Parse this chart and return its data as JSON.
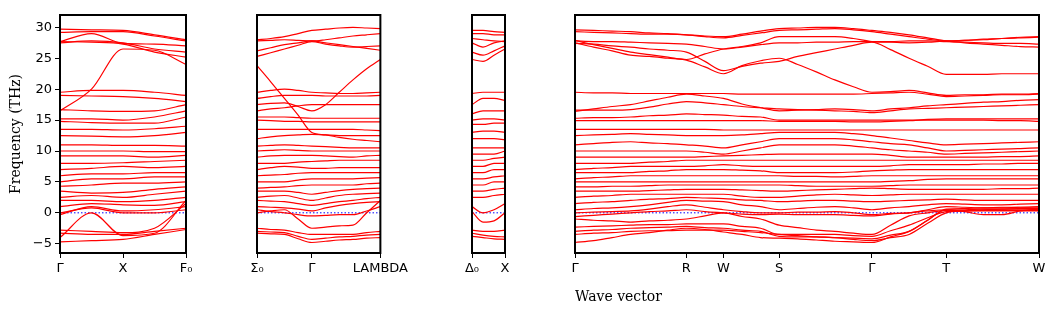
{
  "chart_data": [
    {
      "type": "line",
      "ylabel": "Frequency (THz)",
      "categories": [
        "Γ",
        null,
        "X",
        null,
        "F₀"
      ],
      "ylim": [
        -6.5,
        32
      ],
      "yticks": [
        -5,
        0,
        5,
        10,
        15,
        20,
        25,
        30
      ],
      "ref_lines": [
        {
          "axis": "y",
          "value": 0,
          "color": "#0000ff",
          "line_style": "dotted"
        }
      ],
      "series": [
        {
          "color": "#ff0000",
          "values": [
            29.7,
            29.6,
            29.5,
            28.8,
            28.0
          ]
        },
        {
          "color": "#ff0000",
          "values": [
            29.2,
            29.3,
            29.3,
            28.6,
            27.8
          ]
        },
        {
          "color": "#ff0000",
          "values": [
            27.7,
            29.0,
            27.4,
            27.3,
            27.0
          ]
        },
        {
          "color": "#ff0000",
          "values": [
            27.5,
            27.8,
            27.5,
            26.5,
            26.0
          ]
        },
        {
          "color": "#ff0000",
          "values": [
            27.7,
            27.6,
            27.3,
            26.0,
            25.2
          ]
        },
        {
          "color": "#ff0000",
          "values": [
            16.5,
            20,
            26.5,
            26.3,
            24
          ]
        },
        {
          "color": "#ff0000",
          "values": [
            19.5,
            19.8,
            19.8,
            19.5,
            19.0
          ]
        },
        {
          "color": "#ff0000",
          "values": [
            19.0,
            18.9,
            18.8,
            18.5,
            18.0
          ]
        },
        {
          "color": "#ff0000",
          "values": [
            16.7,
            16.5,
            16.4,
            16.5,
            17.5
          ]
        },
        {
          "color": "#ff0000",
          "values": [
            15.2,
            15.2,
            15.0,
            15.5,
            16.5
          ]
        },
        {
          "color": "#ff0000",
          "values": [
            14.8,
            14.6,
            14.5,
            14.5,
            15.5
          ]
        },
        {
          "color": "#ff0000",
          "values": [
            13.5,
            13.5,
            13.4,
            13.6,
            14.0
          ]
        },
        {
          "color": "#ff0000",
          "values": [
            12.5,
            12.4,
            12.3,
            12.5,
            13.0
          ]
        },
        {
          "color": "#ff0000",
          "values": [
            11.0,
            11.0,
            10.9,
            10.9,
            10.8
          ]
        },
        {
          "color": "#ff0000",
          "values": [
            10.0,
            10.0,
            10.0,
            9.9,
            9.9
          ]
        },
        {
          "color": "#ff0000",
          "values": [
            9.2,
            9.2,
            9.2,
            9.0,
            9.3
          ]
        },
        {
          "color": "#ff0000",
          "values": [
            8.0,
            8.0,
            8.1,
            8.3,
            8.5
          ]
        },
        {
          "color": "#ff0000",
          "values": [
            7.0,
            7.2,
            7.5,
            7.3,
            7.5
          ]
        },
        {
          "color": "#ff0000",
          "values": [
            6.0,
            6.3,
            6.3,
            6.5,
            6.5
          ]
        },
        {
          "color": "#ff0000",
          "values": [
            5.0,
            5.5,
            5.5,
            5.8,
            5.8
          ]
        },
        {
          "color": "#ff0000",
          "values": [
            4.3,
            4.5,
            4.8,
            4.8,
            5.0
          ]
        },
        {
          "color": "#ff0000",
          "values": [
            3.5,
            3.2,
            3.3,
            3.8,
            4.2
          ]
        },
        {
          "color": "#ff0000",
          "values": [
            2.5,
            2.8,
            2.5,
            3.0,
            3.5
          ]
        },
        {
          "color": "#ff0000",
          "values": [
            2.0,
            2.0,
            1.8,
            2.0,
            2.5
          ]
        },
        {
          "color": "#ff0000",
          "values": [
            1.0,
            1.5,
            1.3,
            1.2,
            1.8
          ]
        },
        {
          "color": "#ff0000",
          "values": [
            0,
            0.8,
            0,
            0,
            0.5
          ]
        },
        {
          "color": "#ff0000",
          "values": [
            -0.3,
            1.0,
            0.3,
            0.5,
            1.0
          ]
        },
        {
          "color": "#ff0000",
          "values": [
            -2.8,
            -3.0,
            -3.2,
            -2.5,
            1.5
          ]
        },
        {
          "color": "#ff0000",
          "values": [
            -3.3,
            -3.5,
            -3.5,
            -3.0,
            -2.5
          ]
        },
        {
          "color": "#ff0000",
          "values": [
            -4.0,
            0,
            -3.7,
            -3.3,
            2.0
          ]
        },
        {
          "color": "#ff0000",
          "values": [
            -4.7,
            -4.5,
            -4.3,
            -3.5,
            -2.7
          ]
        }
      ]
    },
    {
      "type": "line",
      "categories": [
        "Σ₀",
        null,
        null,
        null,
        "Γ",
        null,
        null,
        null,
        null,
        "LAMBDA"
      ],
      "ylim": [
        -6.5,
        32
      ],
      "yticks": [
        -5,
        0,
        5,
        10,
        15,
        20,
        25,
        30
      ],
      "tick_labels": "x",
      "ref_lines": [
        {
          "axis": "y",
          "value": 0,
          "color": "#0000ff",
          "line_style": "dotted"
        }
      ],
      "series": [
        {
          "color": "#ff0000",
          "values": [
            28.0,
            28.2,
            28.5,
            29.0,
            29.5,
            29.7,
            29.9,
            30.0,
            29.9,
            29.8
          ]
        },
        {
          "color": "#ff0000",
          "values": [
            27.8,
            27.9,
            28.0,
            27.9,
            27.8,
            28.0,
            28.3,
            28.6,
            28.8,
            29.0
          ]
        },
        {
          "color": "#ff0000",
          "values": [
            26.2,
            26.7,
            27.2,
            27.5,
            27.8,
            27.5,
            27.2,
            26.9,
            26.6,
            26.3
          ]
        },
        {
          "color": "#ff0000",
          "values": [
            25.3,
            25.9,
            26.5,
            27.1,
            27.7,
            27.3,
            27.0,
            26.8,
            26.9,
            27.0
          ]
        },
        {
          "color": "#ff0000",
          "values": [
            23.8,
            21.2,
            18.5,
            15.8,
            13.0,
            12.6,
            12.2,
            11.9,
            11.7,
            11.5
          ]
        },
        {
          "color": "#ff0000",
          "values": [
            19.5,
            19.8,
            20.0,
            19.8,
            19.5,
            19.4,
            19.3,
            19.3,
            19.4,
            19.5
          ]
        },
        {
          "color": "#ff0000",
          "values": [
            17.5,
            17.7,
            17.8,
            17.2,
            16.5,
            17.5,
            19.5,
            21.5,
            23.3,
            24.8
          ]
        },
        {
          "color": "#ff0000",
          "values": [
            18.5,
            18.8,
            19.0,
            19.0,
            19.0,
            18.9,
            18.9,
            18.9,
            18.9,
            19.0
          ]
        },
        {
          "color": "#ff0000",
          "values": [
            16.5,
            16.8,
            17.0,
            17.3,
            17.5,
            17.5,
            17.5,
            17.5,
            17.5,
            17.5
          ]
        },
        {
          "color": "#ff0000",
          "values": [
            15.5,
            15.5,
            15.5,
            15.4,
            15.3,
            15.3,
            15.3,
            15.3,
            15.3,
            15.3
          ]
        },
        {
          "color": "#ff0000",
          "values": [
            15.0,
            14.9,
            14.8,
            14.8,
            14.7,
            14.7,
            14.7,
            14.7,
            14.7,
            14.7
          ]
        },
        {
          "color": "#ff0000",
          "values": [
            13.5,
            13.5,
            13.5,
            13.5,
            13.5,
            13.5,
            13.5,
            13.5,
            13.4,
            13.3
          ]
        },
        {
          "color": "#ff0000",
          "values": [
            12.0,
            12.3,
            12.5,
            12.6,
            12.7,
            12.6,
            12.5,
            12.5,
            12.5,
            12.5
          ]
        },
        {
          "color": "#ff0000",
          "values": [
            10.8,
            10.9,
            11.0,
            10.9,
            10.8,
            10.7,
            10.6,
            10.5,
            10.5,
            10.5
          ]
        },
        {
          "color": "#ff0000",
          "values": [
            10.0,
            10.1,
            10.2,
            10.1,
            10.0,
            10.0,
            10.0,
            10.0,
            10.0,
            10.0
          ]
        },
        {
          "color": "#ff0000",
          "values": [
            9.0,
            9.2,
            9.3,
            9.3,
            9.3,
            9.2,
            9.1,
            9.0,
            9.2,
            9.3
          ]
        },
        {
          "color": "#ff0000",
          "values": [
            8.0,
            8.0,
            8.0,
            8.2,
            8.3,
            8.4,
            8.5,
            8.5,
            8.5,
            8.5
          ]
        },
        {
          "color": "#ff0000",
          "values": [
            7.0,
            7.3,
            7.5,
            7.4,
            7.2,
            7.2,
            7.3,
            7.3,
            7.3,
            7.3
          ]
        },
        {
          "color": "#ff0000",
          "values": [
            6.0,
            6.1,
            6.2,
            6.4,
            6.5,
            6.5,
            6.5,
            6.5,
            6.5,
            6.5
          ]
        },
        {
          "color": "#ff0000",
          "values": [
            5.0,
            5.0,
            5.0,
            5.3,
            5.5,
            5.5,
            5.5,
            5.5,
            5.6,
            5.7
          ]
        },
        {
          "color": "#ff0000",
          "values": [
            4.0,
            4.1,
            4.2,
            4.4,
            4.5,
            4.5,
            4.5,
            4.5,
            4.7,
            4.8
          ]
        },
        {
          "color": "#ff0000",
          "values": [
            3.5,
            3.5,
            3.5,
            3.3,
            3.0,
            3.3,
            3.6,
            3.8,
            3.9,
            4.0
          ]
        },
        {
          "color": "#ff0000",
          "values": [
            2.5,
            2.7,
            2.8,
            2.4,
            2.0,
            2.4,
            2.8,
            3.0,
            3.1,
            3.2
          ]
        },
        {
          "color": "#ff0000",
          "values": [
            2.0,
            1.9,
            1.8,
            1.5,
            1.2,
            1.5,
            1.8,
            2.0,
            2.3,
            2.5
          ]
        },
        {
          "color": "#ff0000",
          "values": [
            1.0,
            0.9,
            0.8,
            0.6,
            0.3,
            0.8,
            1.2,
            1.5,
            1.7,
            1.8
          ]
        },
        {
          "color": "#ff0000",
          "values": [
            0.5,
            0.2,
            0.0,
            -0.3,
            -0.5,
            -0.4,
            -0.3,
            -0.3,
            0.3,
            1.0
          ]
        },
        {
          "color": "#ff0000",
          "values": [
            0.0,
            0.3,
            0.5,
            -1.0,
            -2.5,
            -2.3,
            -2.1,
            -2.0,
            0.0,
            2.0
          ]
        },
        {
          "color": "#ff0000",
          "values": [
            -2.5,
            -2.7,
            -2.8,
            -3.2,
            -3.5,
            -3.5,
            -3.5,
            -3.5,
            -3.2,
            -3.0
          ]
        },
        {
          "color": "#ff0000",
          "values": [
            -3.0,
            -3.1,
            -3.2,
            -3.8,
            -4.3,
            -4.1,
            -3.9,
            -3.8,
            -3.6,
            -3.5
          ]
        },
        {
          "color": "#ff0000",
          "values": [
            -3.3,
            -3.4,
            -3.5,
            -4.2,
            -4.8,
            -4.6,
            -4.4,
            -4.3,
            -4.1,
            -4.0
          ]
        }
      ]
    },
    {
      "type": "line",
      "categories": [
        "Δ₀",
        null,
        null,
        "X"
      ],
      "ylim": [
        -6.5,
        32
      ],
      "yticks": [
        -5,
        0,
        5,
        10,
        15,
        20,
        25,
        30
      ],
      "tick_labels": "x",
      "ref_lines": [
        {
          "axis": "y",
          "value": 0,
          "color": "#0000ff",
          "line_style": "dotted"
        }
      ],
      "series": [
        {
          "color": "#ff0000",
          "values": [
            29.5,
            29.5,
            29.3,
            29.2
          ]
        },
        {
          "color": "#ff0000",
          "values": [
            29.0,
            29.0,
            28.8,
            28.8
          ]
        },
        {
          "color": "#ff0000",
          "values": [
            28.2,
            28.0,
            27.8,
            27.7
          ]
        },
        {
          "color": "#ff0000",
          "values": [
            27.5,
            26.8,
            27.5,
            27.8
          ]
        },
        {
          "color": "#ff0000",
          "values": [
            26.0,
            25.5,
            26.2,
            27.0
          ]
        },
        {
          "color": "#ff0000",
          "values": [
            24.8,
            24.5,
            25.5,
            26.5
          ]
        },
        {
          "color": "#ff0000",
          "values": [
            19.3,
            19.5,
            19.5,
            19.5
          ]
        },
        {
          "color": "#ff0000",
          "values": [
            17.5,
            18.5,
            18.5,
            18.2
          ]
        },
        {
          "color": "#ff0000",
          "values": [
            16.0,
            16.5,
            16.5,
            16.5
          ]
        },
        {
          "color": "#ff0000",
          "values": [
            15.0,
            15.2,
            15.2,
            15.0
          ]
        },
        {
          "color": "#ff0000",
          "values": [
            14.3,
            14.3,
            14.5,
            14.5
          ]
        },
        {
          "color": "#ff0000",
          "values": [
            13.0,
            13.2,
            13.2,
            13.0
          ]
        },
        {
          "color": "#ff0000",
          "values": [
            12.0,
            12.0,
            12.0,
            11.8
          ]
        },
        {
          "color": "#ff0000",
          "values": [
            10.5,
            10.5,
            10.5,
            10.5
          ]
        },
        {
          "color": "#ff0000",
          "values": [
            9.5,
            9.5,
            9.5,
            10.0
          ]
        },
        {
          "color": "#ff0000",
          "values": [
            8.5,
            8.5,
            8.8,
            9.0
          ]
        },
        {
          "color": "#ff0000",
          "values": [
            7.5,
            7.5,
            8.0,
            8.0
          ]
        },
        {
          "color": "#ff0000",
          "values": [
            6.5,
            6.5,
            7.0,
            7.0
          ]
        },
        {
          "color": "#ff0000",
          "values": [
            5.5,
            5.5,
            5.8,
            6.0
          ]
        },
        {
          "color": "#ff0000",
          "values": [
            4.5,
            4.5,
            5.0,
            5.0
          ]
        },
        {
          "color": "#ff0000",
          "values": [
            3.5,
            3.5,
            3.8,
            4.0
          ]
        },
        {
          "color": "#ff0000",
          "values": [
            2.5,
            2.5,
            2.8,
            3.0
          ]
        },
        {
          "color": "#ff0000",
          "values": [
            1.0,
            0.0,
            0.5,
            1.5
          ]
        },
        {
          "color": "#ff0000",
          "values": [
            0.2,
            -1.5,
            -1.3,
            0.0
          ]
        },
        {
          "color": "#ff0000",
          "values": [
            -2.8,
            -3.0,
            -3.0,
            -2.8
          ]
        },
        {
          "color": "#ff0000",
          "values": [
            -3.3,
            -3.6,
            -3.8,
            -3.9
          ]
        },
        {
          "color": "#ff0000",
          "values": [
            -3.8,
            -4.0,
            -4.2,
            -4.3
          ]
        }
      ]
    },
    {
      "type": "line",
      "xlabel": "Wave vector",
      "categories": [
        "Γ",
        null,
        null,
        null,
        null,
        null,
        "R",
        null,
        "W",
        null,
        null,
        "S",
        null,
        null,
        null,
        null,
        "Γ",
        null,
        null,
        null,
        "T",
        null,
        null,
        null,
        null,
        "W"
      ],
      "ylim": [
        -6.5,
        32
      ],
      "yticks": [
        -5,
        0,
        5,
        10,
        15,
        20,
        25,
        30
      ],
      "tick_labels": "x",
      "ref_lines": [
        {
          "axis": "y",
          "value": 0,
          "color": "#0000ff",
          "line_style": "dotted"
        }
      ],
      "series": [
        {
          "color": "#ff0000",
          "values": [
            29.6,
            29.5,
            29.4,
            29.3,
            29.1,
            29.0,
            28.8,
            28.6,
            28.5,
            28.9,
            29.4,
            29.8,
            29.9,
            30.0,
            30.0,
            29.8,
            29.5,
            29.2,
            28.8,
            28.3,
            27.8,
            27.5,
            27.3,
            27.1,
            26.9,
            26.8
          ]
        },
        {
          "color": "#ff0000",
          "values": [
            29.3,
            29.2,
            29.1,
            29.0,
            28.9,
            28.9,
            28.8,
            28.5,
            28.3,
            28.7,
            29.1,
            29.5,
            29.6,
            29.7,
            29.8,
            29.6,
            29.3,
            28.9,
            28.5,
            28.1,
            27.8,
            27.9,
            28.1,
            28.2,
            28.4,
            28.5
          ]
        },
        {
          "color": "#ff0000",
          "values": [
            27.8,
            27.7,
            27.7,
            27.6,
            27.5,
            27.4,
            27.3,
            26.9,
            26.5,
            26.8,
            27.2,
            27.5,
            27.5,
            27.6,
            27.6,
            27.7,
            27.7,
            27.7,
            27.8,
            27.8,
            27.7,
            27.6,
            27.5,
            27.4,
            27.4,
            27.3
          ]
        },
        {
          "color": "#ff0000",
          "values": [
            27.9,
            27.2,
            26.6,
            26.0,
            25.6,
            25.2,
            24.8,
            25.7,
            26.5,
            26.9,
            27.5,
            28.5,
            28.5,
            28.5,
            28.5,
            28.2,
            27.7,
            27.6,
            27.5,
            27.6,
            27.8,
            27.9,
            28.0,
            28.2,
            28.3,
            28.4
          ]
        },
        {
          "color": "#ff0000",
          "values": [
            27.5,
            26.8,
            26.2,
            25.5,
            25.3,
            25.0,
            24.7,
            23.6,
            22.5,
            23.8,
            24.6,
            25.0,
            24.0,
            22.8,
            21.5,
            20.4,
            19.5,
            19.6,
            19.8,
            19.4,
            19.0,
            19.1,
            19.1,
            19.2,
            19.2,
            19.3
          ]
        },
        {
          "color": "#ff0000",
          "values": [
            27.4,
            27.3,
            27.0,
            26.8,
            26.5,
            26.3,
            26.0,
            24.5,
            23.0,
            23.7,
            24.2,
            24.5,
            25.3,
            25.9,
            26.5,
            27.1,
            27.6,
            26.4,
            25.0,
            23.7,
            22.4,
            22.4,
            22.4,
            22.5,
            22.5,
            22.5
          ]
        },
        {
          "color": "#ff0000",
          "values": [
            19.5,
            19.4,
            19.4,
            19.3,
            19.3,
            19.3,
            19.3,
            19.3,
            19.3,
            19.2,
            19.2,
            19.2,
            19.2,
            19.2,
            19.2,
            19.2,
            19.3,
            19.4,
            19.5,
            19.2,
            18.8,
            18.9,
            19.0,
            19.1,
            19.1,
            19.2
          ]
        },
        {
          "color": "#ff0000",
          "values": [
            16.4,
            16.8,
            17.2,
            17.5,
            18.1,
            18.7,
            19.2,
            18.9,
            18.5,
            17.6,
            17.0,
            16.5,
            16.6,
            16.7,
            16.8,
            16.7,
            16.5,
            16.8,
            17.0,
            17.3,
            17.5,
            17.7,
            17.9,
            18.0,
            18.2,
            18.3
          ]
        },
        {
          "color": "#ff0000",
          "values": [
            16.6,
            16.6,
            16.6,
            16.7,
            17.1,
            17.6,
            18.0,
            17.8,
            17.5,
            17.2,
            17.0,
            16.8,
            16.7,
            16.6,
            16.5,
            16.4,
            16.2,
            16.5,
            16.8,
            16.9,
            17.0,
            17.1,
            17.2,
            17.3,
            17.4,
            17.5
          ]
        },
        {
          "color": "#ff0000",
          "values": [
            15.3,
            15.4,
            15.4,
            15.5,
            15.7,
            15.8,
            16.0,
            15.9,
            15.8,
            15.6,
            15.5,
            15.0,
            15.0,
            15.0,
            15.0,
            15.0,
            15.0,
            15.0,
            15.0,
            15.0,
            15.0,
            15.0,
            15.0,
            14.9,
            14.9,
            14.8
          ]
        },
        {
          "color": "#ff0000",
          "values": [
            14.9,
            14.9,
            14.9,
            14.9,
            14.9,
            14.9,
            14.9,
            14.9,
            14.9,
            14.9,
            14.9,
            14.8,
            14.8,
            14.8,
            14.8,
            14.7,
            14.7,
            14.8,
            14.9,
            15.1,
            15.2,
            15.2,
            15.2,
            15.2,
            15.2,
            15.2
          ]
        },
        {
          "color": "#ff0000",
          "values": [
            13.5,
            13.5,
            13.5,
            13.5,
            13.5,
            13.5,
            13.5,
            13.5,
            13.4,
            13.4,
            13.4,
            13.4,
            13.4,
            13.4,
            13.4,
            13.4,
            13.4,
            13.4,
            13.4,
            13.4,
            13.4,
            13.4,
            13.4,
            13.4,
            13.4,
            13.4
          ]
        },
        {
          "color": "#ff0000",
          "values": [
            12.5,
            12.6,
            12.7,
            12.8,
            12.7,
            12.6,
            12.5,
            12.5,
            12.5,
            12.6,
            12.8,
            13.0,
            13.0,
            13.0,
            13.0,
            12.8,
            12.5,
            12.1,
            11.7,
            11.3,
            11.0,
            11.1,
            11.2,
            11.3,
            11.4,
            11.5
          ]
        },
        {
          "color": "#ff0000",
          "values": [
            11.0,
            11.2,
            11.4,
            11.5,
            11.3,
            11.2,
            11.0,
            10.8,
            10.5,
            11.0,
            11.5,
            12.0,
            12.0,
            12.0,
            12.0,
            11.8,
            11.5,
            11.2,
            11.0,
            10.5,
            10.0,
            10.1,
            10.2,
            10.3,
            10.4,
            10.5
          ]
        },
        {
          "color": "#ff0000",
          "values": [
            10.0,
            10.0,
            10.0,
            10.0,
            10.0,
            10.0,
            10.0,
            9.8,
            9.5,
            10.0,
            10.5,
            11.0,
            11.0,
            11.0,
            11.0,
            10.8,
            10.5,
            10.2,
            10.0,
            9.8,
            9.5,
            9.6,
            9.7,
            9.8,
            9.9,
            10.0
          ]
        },
        {
          "color": "#ff0000",
          "values": [
            9.0,
            9.0,
            9.0,
            9.0,
            9.0,
            9.0,
            9.0,
            9.1,
            9.2,
            9.3,
            9.4,
            9.5,
            9.5,
            9.5,
            9.5,
            9.5,
            9.5,
            9.3,
            9.0,
            9.0,
            9.0,
            9.0,
            9.0,
            9.1,
            9.1,
            9.2
          ]
        },
        {
          "color": "#ff0000",
          "values": [
            8.0,
            8.0,
            8.0,
            8.0,
            8.2,
            8.3,
            8.5,
            8.5,
            8.5,
            8.5,
            8.5,
            8.5,
            8.5,
            8.5,
            8.5,
            8.5,
            8.5,
            8.5,
            8.5,
            8.5,
            8.5,
            8.5,
            8.5,
            8.5,
            8.5,
            8.5
          ]
        },
        {
          "color": "#ff0000",
          "values": [
            7.0,
            7.2,
            7.3,
            7.5,
            7.5,
            7.5,
            7.5,
            7.6,
            7.8,
            7.6,
            7.5,
            7.5,
            7.5,
            7.5,
            7.5,
            7.5,
            7.5,
            7.6,
            7.8,
            7.8,
            7.8,
            7.8,
            7.9,
            7.9,
            8.0,
            8.0
          ]
        },
        {
          "color": "#ff0000",
          "values": [
            6.5,
            6.5,
            6.5,
            6.5,
            6.7,
            6.8,
            7.0,
            7.0,
            7.0,
            6.9,
            6.8,
            6.5,
            6.5,
            6.5,
            6.5,
            6.6,
            6.8,
            6.9,
            7.0,
            7.0,
            7.0,
            7.0,
            7.0,
            7.0,
            7.0,
            7.0
          ]
        },
        {
          "color": "#ff0000",
          "values": [
            5.5,
            5.7,
            5.8,
            6.0,
            6.0,
            6.0,
            6.0,
            6.0,
            6.0,
            6.0,
            6.0,
            6.0,
            5.9,
            5.9,
            5.8,
            5.9,
            6.0,
            6.0,
            6.0,
            6.0,
            6.0,
            6.0,
            6.0,
            6.0,
            6.0,
            6.0
          ]
        },
        {
          "color": "#ff0000",
          "values": [
            5.0,
            5.0,
            5.0,
            5.0,
            5.0,
            5.0,
            5.0,
            5.0,
            5.0,
            5.0,
            5.0,
            5.0,
            5.0,
            5.0,
            5.0,
            5.0,
            5.0,
            5.1,
            5.2,
            5.4,
            5.5,
            5.5,
            5.5,
            5.5,
            5.5,
            5.5
          ]
        },
        {
          "color": "#ff0000",
          "values": [
            4.2,
            4.2,
            4.3,
            4.3,
            4.4,
            4.5,
            4.5,
            4.5,
            4.5,
            4.5,
            4.5,
            4.5,
            4.4,
            4.3,
            4.3,
            4.3,
            4.3,
            4.4,
            4.5,
            4.5,
            4.5,
            4.5,
            4.5,
            4.5,
            4.5,
            4.5
          ]
        },
        {
          "color": "#ff0000",
          "values": [
            3.5,
            3.5,
            3.5,
            3.5,
            3.6,
            3.7,
            3.8,
            3.8,
            3.8,
            3.7,
            3.6,
            3.5,
            3.6,
            3.7,
            3.8,
            3.9,
            4.0,
            3.9,
            3.8,
            3.8,
            3.8,
            3.8,
            3.8,
            3.9,
            3.9,
            4.0
          ]
        },
        {
          "color": "#ff0000",
          "values": [
            2.5,
            2.7,
            2.8,
            3.0,
            3.0,
            3.0,
            3.0,
            3.0,
            3.0,
            2.7,
            2.5,
            2.5,
            2.7,
            2.9,
            3.0,
            2.9,
            2.8,
            2.9,
            3.0,
            3.0,
            3.0,
            3.0,
            3.0,
            3.0,
            3.0,
            3.0
          ]
        },
        {
          "color": "#ff0000",
          "values": [
            1.5,
            1.7,
            1.8,
            2.0,
            2.2,
            2.3,
            2.5,
            2.4,
            2.3,
            2.1,
            2.0,
            1.8,
            1.9,
            2.0,
            2.0,
            1.9,
            1.8,
            1.9,
            2.0,
            2.1,
            2.2,
            2.1,
            2.0,
            2.0,
            2.0,
            2.0
          ]
        },
        {
          "color": "#ff0000",
          "values": [
            0.5,
            0.7,
            0.8,
            1.0,
            1.3,
            1.7,
            2.0,
            1.9,
            1.8,
            1.3,
            1.0,
            0.5,
            0.7,
            0.9,
            1.0,
            0.8,
            0.5,
            0.8,
            1.0,
            1.3,
            1.5,
            1.4,
            1.3,
            1.3,
            1.4,
            1.5
          ]
        },
        {
          "color": "#ff0000",
          "values": [
            0.0,
            0.1,
            0.2,
            0.3,
            0.6,
            1.0,
            1.3,
            0.9,
            0.5,
            0.2,
            0.0,
            0.0,
            0.1,
            0.1,
            0.2,
            0.0,
            -0.3,
            -0.1,
            0.0,
            0.5,
            1.0,
            0.9,
            0.8,
            0.9,
            0.9,
            1.0
          ]
        },
        {
          "color": "#ff0000",
          "values": [
            -0.6,
            -0.4,
            -0.2,
            0.0,
            0.2,
            0.3,
            0.5,
            0.2,
            0.0,
            -0.2,
            -0.3,
            -0.2,
            -0.3,
            -0.3,
            -0.3,
            -0.4,
            -0.5,
            -0.2,
            0.0,
            0.3,
            0.5,
            0.2,
            -0.3,
            -0.3,
            0.3,
            0.6
          ]
        },
        {
          "color": "#ff0000",
          "values": [
            -1.0,
            -1.2,
            -1.3,
            -1.5,
            -1.3,
            -1.2,
            -1.0,
            -0.5,
            0.0,
            -0.6,
            -1.0,
            -2.0,
            -2.4,
            -2.8,
            -3.0,
            -3.3,
            -3.5,
            -2.0,
            -0.5,
            0.0,
            0.4,
            0.3,
            0.3,
            0.3,
            0.3,
            0.3
          ]
        },
        {
          "color": "#ff0000",
          "values": [
            -2.3,
            -2.2,
            -2.1,
            -2.0,
            -1.9,
            -1.9,
            -1.8,
            -1.8,
            -1.8,
            -2.2,
            -2.5,
            -3.5,
            -3.5,
            -3.5,
            -3.5,
            -3.7,
            -3.8,
            -2.9,
            -2.0,
            -0.8,
            0.2,
            0.3,
            0.4,
            0.4,
            0.4,
            0.4
          ]
        },
        {
          "color": "#ff0000",
          "values": [
            -3.0,
            -2.8,
            -2.7,
            -2.5,
            -2.4,
            -2.3,
            -2.2,
            -2.4,
            -2.5,
            -2.8,
            -3.0,
            -3.8,
            -3.9,
            -3.9,
            -4.0,
            -4.1,
            -4.2,
            -3.6,
            -3.0,
            -1.2,
            0.5,
            0.5,
            0.6,
            0.6,
            0.6,
            0.6
          ]
        },
        {
          "color": "#ff0000",
          "values": [
            -3.5,
            -3.3,
            -3.2,
            -3.0,
            -2.9,
            -2.9,
            -2.8,
            -2.8,
            -2.8,
            -3.0,
            -3.2,
            -3.5,
            -3.7,
            -3.9,
            -4.0,
            -4.3,
            -4.5,
            -4.0,
            -3.5,
            -1.7,
            0.0,
            0.3,
            0.5,
            0.6,
            0.7,
            0.7
          ]
        },
        {
          "color": "#ff0000",
          "values": [
            -4.8,
            -4.5,
            -4.0,
            -3.5,
            -3.2,
            -2.8,
            -2.5,
            -2.7,
            -3.1,
            -3.5,
            -4.0,
            -4.1,
            -4.2,
            -4.4,
            -4.6,
            -4.7,
            -4.8,
            -3.9,
            -3.0,
            -1.2,
            0.6,
            0.7,
            0.8,
            0.8,
            0.9,
            0.9
          ]
        }
      ]
    }
  ]
}
